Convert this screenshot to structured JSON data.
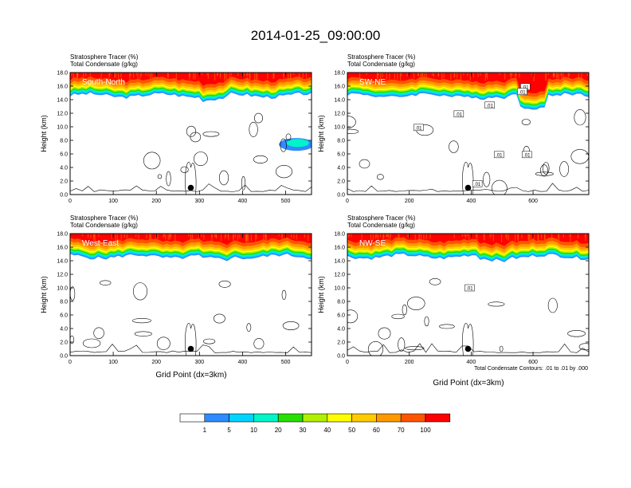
{
  "title": "2014-01-25_09:00:00",
  "field_label_1": "Stratosphere Tracer   (%)",
  "field_label_2": "Total Condensate   (g/kg)",
  "ylabel": "Height (km)",
  "xlabel": "Grid Point (dx=3km)",
  "contour_note": "Total Condensate Contours: .01 to .01 by .000",
  "chart_data": [
    {
      "type": "heatmap",
      "panel": "South-North",
      "xlim": [
        0,
        560
      ],
      "ylim": [
        0,
        18
      ],
      "x_ticks": [
        0,
        100,
        200,
        300,
        400,
        500
      ],
      "y_ticks": [
        "0.0",
        "2.0",
        "4.0",
        "6.0",
        "8.0",
        "10.0",
        "12.0",
        "14.0",
        "16.0",
        "18.0"
      ],
      "tracer_layer_km": {
        "base": 14.8,
        "top": 18.0
      },
      "marker": {
        "x": 280,
        "y": 1.0
      },
      "contour_labels": []
    },
    {
      "type": "heatmap",
      "panel": "SW-NE",
      "xlim": [
        0,
        780
      ],
      "ylim": [
        0,
        18
      ],
      "x_ticks": [
        0,
        200,
        400,
        600
      ],
      "y_ticks": [
        "0.0",
        "2.0",
        "4.0",
        "6.0",
        "8.0",
        "10.0",
        "12.0",
        "14.0",
        "16.0",
        "18.0"
      ],
      "tracer_layer_km": {
        "base": 14.8,
        "top": 18.0
      },
      "marker": {
        "x": 390,
        "y": 1.0
      },
      "contour_labels": [
        {
          "text": ".01",
          "x": 575,
          "y": 15.9
        },
        {
          "text": ".01",
          "x": 565,
          "y": 15.2
        },
        {
          "text": ".01",
          "x": 460,
          "y": 13.2
        },
        {
          "text": ".01",
          "x": 360,
          "y": 11.9
        },
        {
          "text": ".01",
          "x": 230,
          "y": 9.9
        },
        {
          "text": ".01",
          "x": 490,
          "y": 5.9
        },
        {
          "text": ".01",
          "x": 580,
          "y": 5.9
        },
        {
          "text": ".01",
          "x": 420,
          "y": 1.6
        }
      ]
    },
    {
      "type": "heatmap",
      "panel": "West-East",
      "xlim": [
        0,
        560
      ],
      "ylim": [
        0,
        18
      ],
      "x_ticks": [
        0,
        100,
        200,
        300,
        400,
        500
      ],
      "y_ticks": [
        "0.0",
        "2.0",
        "4.0",
        "6.0",
        "8.0",
        "10.0",
        "12.0",
        "14.0",
        "16.0",
        "18.0"
      ],
      "tracer_layer_km": {
        "base": 14.8,
        "top": 18.0
      },
      "marker": {
        "x": 280,
        "y": 1.0
      },
      "contour_labels": []
    },
    {
      "type": "heatmap",
      "panel": "NW-SE",
      "xlim": [
        0,
        780
      ],
      "ylim": [
        0,
        18
      ],
      "x_ticks": [
        0,
        200,
        400,
        600
      ],
      "y_ticks": [
        "0.0",
        "2.0",
        "4.0",
        "6.0",
        "8.0",
        "10.0",
        "12.0",
        "14.0",
        "16.0",
        "18.0"
      ],
      "tracer_layer_km": {
        "base": 14.8,
        "top": 18.0
      },
      "marker": {
        "x": 390,
        "y": 1.0
      },
      "contour_labels": [
        {
          "text": ".01",
          "x": 395,
          "y": 10.0
        }
      ]
    }
  ],
  "colorbar": {
    "labels": [
      "1",
      "5",
      "10",
      "20",
      "30",
      "40",
      "50",
      "60",
      "70",
      "100"
    ],
    "colors": [
      "#ffffff",
      "#2f8bff",
      "#00d4ff",
      "#00f5c8",
      "#25e000",
      "#b0f000",
      "#ffff00",
      "#ffcc00",
      "#ff9900",
      "#ff5500",
      "#ff0000"
    ]
  }
}
